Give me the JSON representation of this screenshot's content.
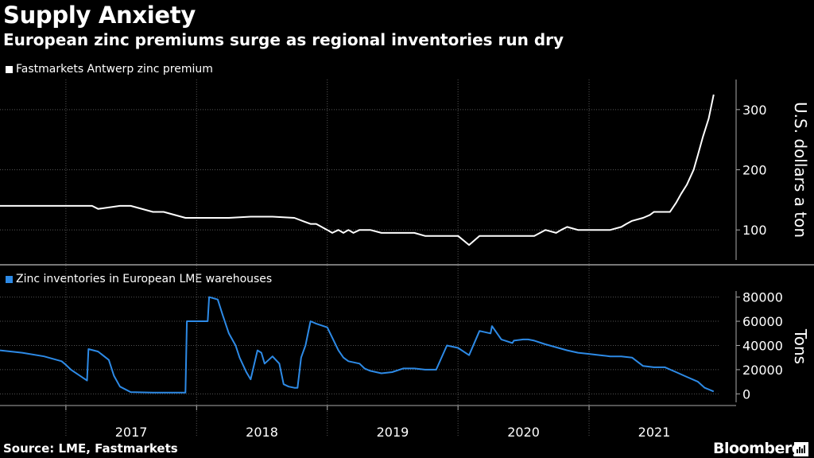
{
  "title": "Supply Anxiety",
  "subtitle": "European zinc premiums surge as regional inventories run dry",
  "source": "Source: LME, Fastmarkets",
  "brand": "Bloomberg",
  "chart_data": [
    {
      "type": "line",
      "series": [
        {
          "name": "Fastmarkets Antwerp zinc premium",
          "color": "#ffffff",
          "x": [
            "2016-07-01",
            "2017-01-01",
            "2017-03-15",
            "2017-04-01",
            "2017-06-01",
            "2017-07-01",
            "2017-09-01",
            "2017-10-01",
            "2017-12-01",
            "2018-02-01",
            "2018-04-01",
            "2018-06-01",
            "2018-08-01",
            "2018-10-01",
            "2018-11-15",
            "2018-12-01",
            "2019-01-01",
            "2019-01-15",
            "2019-02-01",
            "2019-02-15",
            "2019-03-01",
            "2019-03-15",
            "2019-04-01",
            "2019-05-01",
            "2019-06-01",
            "2019-07-01",
            "2019-09-01",
            "2019-10-01",
            "2019-12-01",
            "2020-01-01",
            "2020-02-01",
            "2020-03-01",
            "2020-03-20",
            "2020-04-01",
            "2020-04-15",
            "2020-05-01",
            "2020-06-01",
            "2020-08-01",
            "2020-09-01",
            "2020-10-01",
            "2020-10-15",
            "2020-11-01",
            "2020-12-01",
            "2021-01-01",
            "2021-02-01",
            "2021-03-01",
            "2021-04-01",
            "2021-04-15",
            "2021-05-01",
            "2021-06-01",
            "2021-06-20",
            "2021-07-01",
            "2021-08-01",
            "2021-08-15",
            "2021-09-01",
            "2021-09-15",
            "2021-10-01",
            "2021-10-20",
            "2021-11-01",
            "2021-11-15",
            "2021-12-01",
            "2021-12-15"
          ],
          "values": [
            140,
            140,
            140,
            135,
            140,
            140,
            130,
            130,
            120,
            120,
            120,
            122,
            122,
            120,
            110,
            110,
            100,
            95,
            100,
            95,
            100,
            95,
            100,
            100,
            95,
            95,
            95,
            90,
            90,
            90,
            75,
            90,
            90,
            90,
            90,
            90,
            90,
            90,
            100,
            95,
            100,
            105,
            100,
            100,
            100,
            100,
            105,
            110,
            115,
            120,
            125,
            130,
            130,
            130,
            145,
            160,
            175,
            200,
            225,
            255,
            285,
            325
          ]
        }
      ],
      "yticks": [
        100,
        200,
        300
      ],
      "ylim": [
        50,
        350
      ],
      "ylabel": "U.S. dollars a ton"
    },
    {
      "type": "line",
      "series": [
        {
          "name": "Zinc inventories in European LME warehouses",
          "color": "#2d8ae6",
          "x": [
            "2016-07-01",
            "2016-09-01",
            "2016-11-01",
            "2016-12-20",
            "2017-01-01",
            "2017-01-15",
            "2017-03-01",
            "2017-03-05",
            "2017-04-01",
            "2017-05-01",
            "2017-05-15",
            "2017-06-01",
            "2017-07-01",
            "2017-09-01",
            "2017-12-01",
            "2017-12-05",
            "2018-02-01",
            "2018-02-05",
            "2018-03-01",
            "2018-03-15",
            "2018-04-01",
            "2018-04-20",
            "2018-05-01",
            "2018-05-20",
            "2018-06-01",
            "2018-06-20",
            "2018-07-01",
            "2018-07-10",
            "2018-08-01",
            "2018-08-20",
            "2018-09-01",
            "2018-09-15",
            "2018-10-01",
            "2018-10-10",
            "2018-10-20",
            "2018-11-01",
            "2018-11-15",
            "2018-12-01",
            "2019-01-01",
            "2019-02-01",
            "2019-02-15",
            "2019-03-01",
            "2019-04-01",
            "2019-04-15",
            "2019-05-01",
            "2019-06-01",
            "2019-07-01",
            "2019-08-01",
            "2019-09-01",
            "2019-10-01",
            "2019-11-01",
            "2019-12-01",
            "2020-01-01",
            "2020-02-01",
            "2020-03-01",
            "2020-04-01",
            "2020-04-05",
            "2020-05-01",
            "2020-06-01",
            "2020-06-05",
            "2020-07-01",
            "2020-07-15",
            "2020-08-01",
            "2020-09-01",
            "2020-11-01",
            "2020-12-01",
            "2021-01-01",
            "2021-02-01",
            "2021-03-01",
            "2021-04-01",
            "2021-05-01",
            "2021-06-01",
            "2021-07-01",
            "2021-08-01",
            "2021-09-01",
            "2021-10-01",
            "2021-11-01",
            "2021-11-20",
            "2021-12-15"
          ],
          "values": [
            36000,
            34000,
            31000,
            27000,
            24000,
            20000,
            11000,
            37000,
            35000,
            28000,
            15000,
            6000,
            1500,
            1000,
            1000,
            60000,
            60000,
            80000,
            78000,
            65000,
            50000,
            40000,
            30000,
            18000,
            12000,
            36000,
            34000,
            25000,
            31000,
            25000,
            8000,
            6000,
            5000,
            5000,
            30000,
            40000,
            60000,
            58000,
            55000,
            36000,
            30000,
            27000,
            25000,
            21000,
            19000,
            17000,
            18000,
            21000,
            21000,
            20000,
            20000,
            40000,
            38000,
            32000,
            52000,
            50000,
            56000,
            45000,
            42000,
            44000,
            45000,
            45000,
            44000,
            41000,
            36000,
            34000,
            33000,
            32000,
            31000,
            31000,
            30000,
            23000,
            22000,
            22000,
            18000,
            14000,
            10000,
            5000,
            2000
          ]
        }
      ],
      "yticks": [
        0,
        20000,
        40000,
        60000,
        80000
      ],
      "ylim": [
        -7000,
        85000
      ],
      "ylabel": "Tons"
    }
  ],
  "xaxis": {
    "range": [
      "2016-07-01",
      "2021-12-31"
    ],
    "labels": [
      "2017",
      "2018",
      "2019",
      "2020",
      "2021"
    ]
  }
}
